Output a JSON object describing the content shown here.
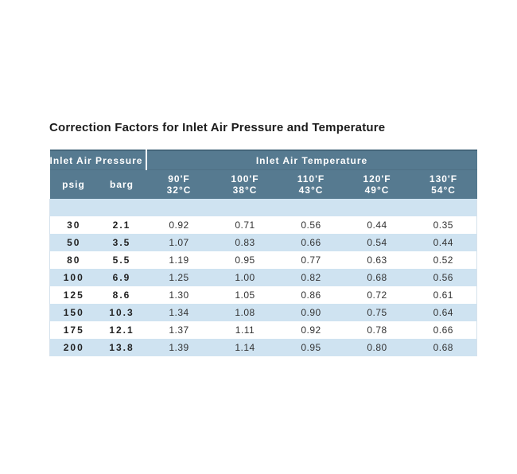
{
  "page": {
    "title": "Correction Factors for Inlet Air Pressure and Temperature"
  },
  "table": {
    "group_headers": [
      {
        "label": "Inlet Air Pressure"
      },
      {
        "label": "Inlet Air Temperature"
      }
    ],
    "columns": [
      {
        "label": "psig"
      },
      {
        "label": "barg"
      },
      {
        "label_f": "90'F",
        "label_c": "32°C"
      },
      {
        "label_f": "100'F",
        "label_c": "38°C"
      },
      {
        "label_f": "110'F",
        "label_c": "43°C"
      },
      {
        "label_f": "120'F",
        "label_c": "49°C"
      },
      {
        "label_f": "130'F",
        "label_c": "54°C"
      }
    ],
    "rows": [
      [
        "30",
        "2.1",
        "0.92",
        "0.71",
        "0.56",
        "0.44",
        "0.35"
      ],
      [
        "50",
        "3.5",
        "1.07",
        "0.83",
        "0.66",
        "0.54",
        "0.44"
      ],
      [
        "80",
        "5.5",
        "1.19",
        "0.95",
        "0.77",
        "0.63",
        "0.52"
      ],
      [
        "100",
        "6.9",
        "1.25",
        "1.00",
        "0.82",
        "0.68",
        "0.56"
      ],
      [
        "125",
        "8.6",
        "1.30",
        "1.05",
        "0.86",
        "0.72",
        "0.61"
      ],
      [
        "150",
        "10.3",
        "1.34",
        "1.08",
        "0.90",
        "0.75",
        "0.64"
      ],
      [
        "175",
        "12.1",
        "1.37",
        "1.11",
        "0.92",
        "0.78",
        "0.66"
      ],
      [
        "200",
        "13.8",
        "1.39",
        "1.14",
        "0.95",
        "0.80",
        "0.68"
      ]
    ]
  },
  "chart_data": {
    "type": "table",
    "title": "Correction Factors for Inlet Air Pressure and Temperature",
    "column_groups": [
      {
        "label": "Inlet Air Pressure",
        "columns": [
          "psig",
          "barg"
        ]
      },
      {
        "label": "Inlet Air Temperature",
        "columns": [
          "90'F / 32°C",
          "100'F / 38°C",
          "110'F / 43°C",
          "120'F / 49°C",
          "130'F / 54°C"
        ]
      }
    ],
    "rows": [
      {
        "psig": 30,
        "barg": 2.1,
        "factors": [
          0.92,
          0.71,
          0.56,
          0.44,
          0.35
        ]
      },
      {
        "psig": 50,
        "barg": 3.5,
        "factors": [
          1.07,
          0.83,
          0.66,
          0.54,
          0.44
        ]
      },
      {
        "psig": 80,
        "barg": 5.5,
        "factors": [
          1.19,
          0.95,
          0.77,
          0.63,
          0.52
        ]
      },
      {
        "psig": 100,
        "barg": 6.9,
        "factors": [
          1.25,
          1.0,
          0.82,
          0.68,
          0.56
        ]
      },
      {
        "psig": 125,
        "barg": 8.6,
        "factors": [
          1.3,
          1.05,
          0.86,
          0.72,
          0.61
        ]
      },
      {
        "psig": 150,
        "barg": 10.3,
        "factors": [
          1.34,
          1.08,
          0.9,
          0.75,
          0.64
        ]
      },
      {
        "psig": 175,
        "barg": 12.1,
        "factors": [
          1.37,
          1.11,
          0.92,
          0.78,
          0.66
        ]
      },
      {
        "psig": 200,
        "barg": 13.8,
        "factors": [
          1.39,
          1.14,
          0.95,
          0.8,
          0.68
        ]
      }
    ],
    "layout": {
      "striped_rows": true,
      "stripe_start": "white"
    }
  },
  "colors": {
    "header_bg": "#567a90",
    "header_top_border": "#44657a",
    "header_text": "#ffffff",
    "row_alt_bg": "#cfe3f1",
    "row_bg": "#ffffff",
    "cell_text": "#333333",
    "title_text": "#1c1c1c"
  }
}
